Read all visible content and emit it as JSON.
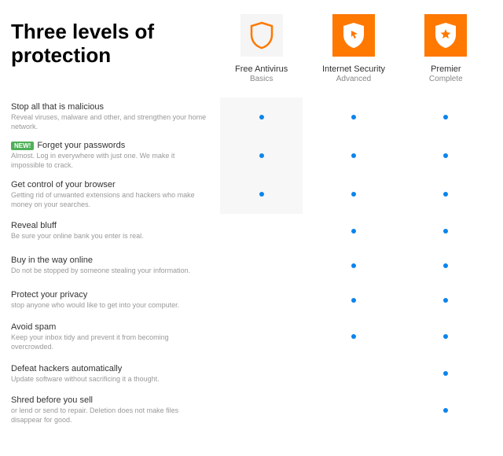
{
  "title": "Three levels of protection",
  "colors": {
    "orange": "#ff7800",
    "light_bg": "#f5f5f5",
    "dot": "#0b84ed",
    "badge": "#4fb05a",
    "text": "#333333",
    "muted": "#999999",
    "row_alt": "#f7f7f7"
  },
  "tiers": [
    {
      "name": "Free Antivirus",
      "subtitle": "Basics",
      "icon_style": "outline"
    },
    {
      "name": "Internet Security",
      "subtitle": "Advanced",
      "icon_style": "solid_cursor"
    },
    {
      "name": "Premier",
      "subtitle": "Complete",
      "icon_style": "solid_star"
    }
  ],
  "features": [
    {
      "title": "Stop all that is malicious",
      "desc": "Reveal viruses, malware and other, and strengthen your home network.",
      "badge": null,
      "checks": [
        true,
        true,
        true
      ]
    },
    {
      "title": "Forget your passwords",
      "desc": "Almost. Log in everywhere with just one. We make it impossible to crack.",
      "badge": "NEW!",
      "checks": [
        true,
        true,
        true
      ]
    },
    {
      "title": "Get control of your browser",
      "desc": "Getting rid of unwanted extensions and hackers who make money on your searches.",
      "badge": null,
      "checks": [
        true,
        true,
        true
      ]
    },
    {
      "title": "Reveal bluff",
      "desc": "Be sure your online bank you enter is real.",
      "badge": null,
      "checks": [
        false,
        true,
        true
      ]
    },
    {
      "title": "Buy in the way online",
      "desc": "Do not be stopped by someone stealing your information.",
      "badge": null,
      "checks": [
        false,
        true,
        true
      ]
    },
    {
      "title": "Protect your privacy",
      "desc": "stop anyone who would like to get into your computer.",
      "badge": null,
      "checks": [
        false,
        true,
        true
      ]
    },
    {
      "title": "Avoid spam",
      "desc": "Keep your inbox tidy and prevent it from becoming overcrowded.",
      "badge": null,
      "checks": [
        false,
        true,
        true
      ]
    },
    {
      "title": "Defeat hackers automatically",
      "desc": "Update software without sacrificing it a thought.",
      "badge": null,
      "checks": [
        false,
        false,
        true
      ]
    },
    {
      "title": "Shred before you sell",
      "desc": "or lend or send to repair. Deletion does not make files disappear for good.",
      "badge": null,
      "checks": [
        false,
        false,
        true
      ]
    }
  ]
}
